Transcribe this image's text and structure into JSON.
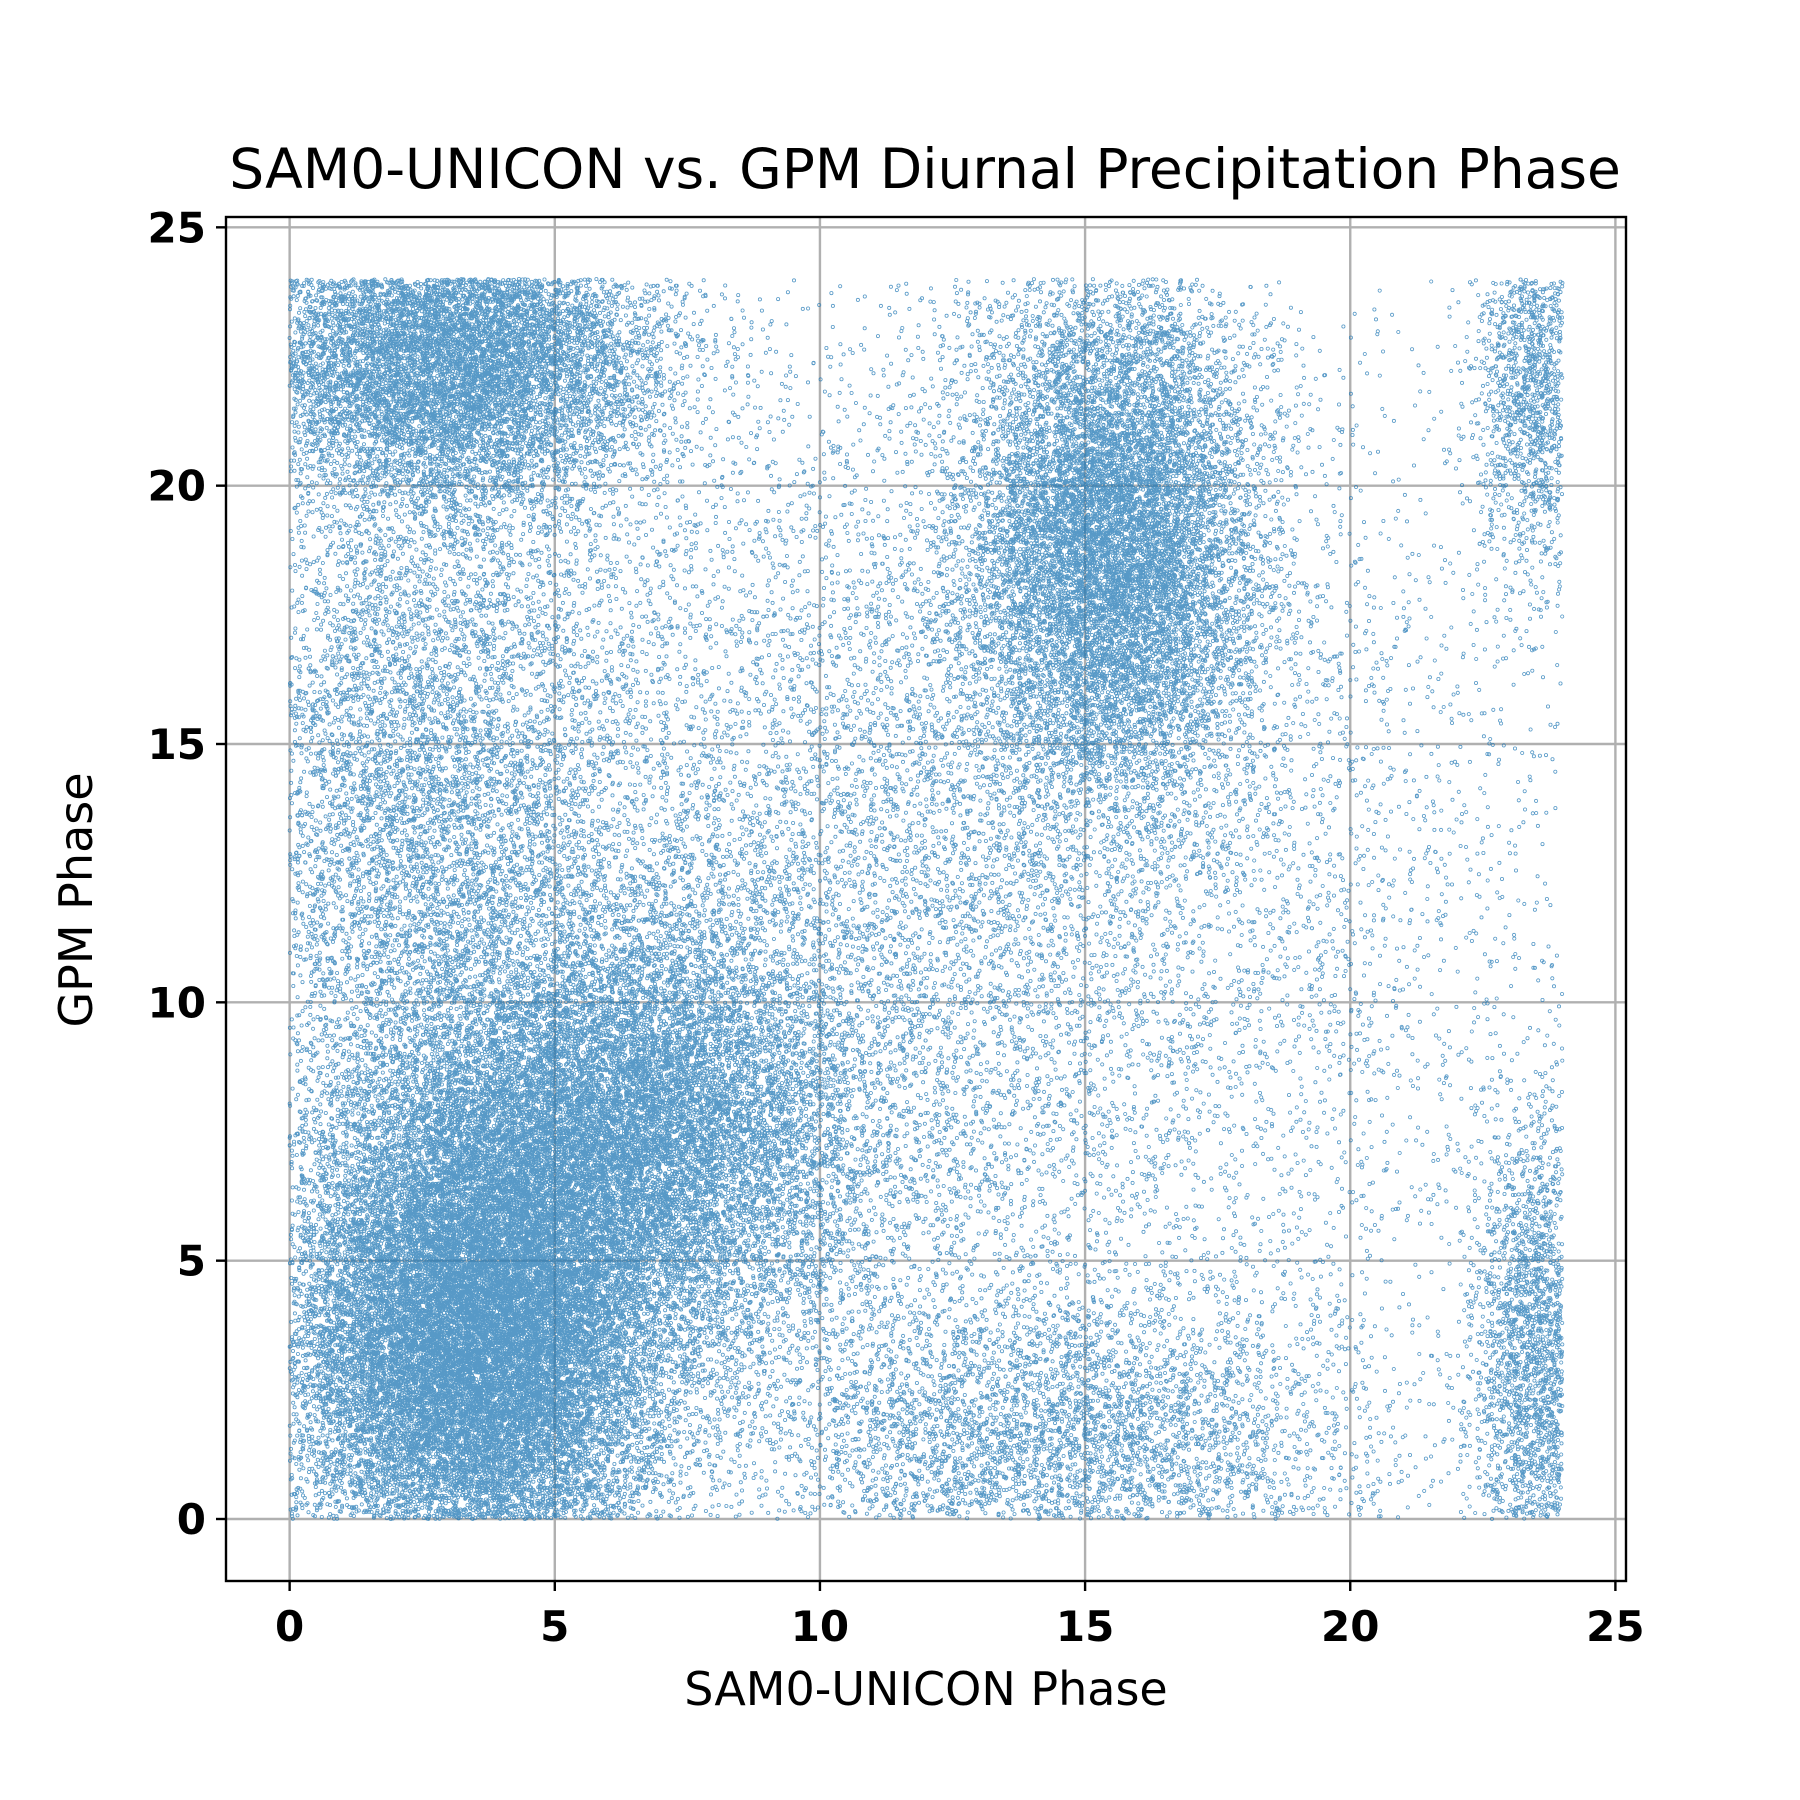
{
  "chart_data": {
    "type": "scatter",
    "title": "SAM0-UNICON vs. GPM Diurnal Precipitation Phase",
    "xlabel": "SAM0-UNICON Phase",
    "ylabel": "GPM Phase",
    "xlim": [
      -1.2,
      25.2
    ],
    "ylim": [
      -1.2,
      25.2
    ],
    "xticks": [
      0,
      5,
      10,
      15,
      20,
      25
    ],
    "yticks": [
      0,
      5,
      10,
      15,
      20,
      25
    ],
    "grid": true,
    "marker_color": "#1f77b4",
    "data_range": {
      "x": [
        0,
        24
      ],
      "y": [
        0,
        24
      ]
    },
    "clusters": [
      {
        "name": "",
        "center": [
          3.5,
          3.5
        ],
        "spread": [
          1.8,
          2.6
        ],
        "weight": 0.28
      },
      {
        "name": "",
        "center": [
          6.5,
          7.5
        ],
        "spread": [
          2.2,
          2.2
        ],
        "weight": 0.14
      },
      {
        "name": "",
        "center": [
          3.0,
          22.5
        ],
        "spread": [
          2.0,
          1.5
        ],
        "weight": 0.12
      },
      {
        "name": "",
        "center": [
          15.5,
          19.0
        ],
        "spread": [
          1.4,
          2.6
        ],
        "weight": 0.13
      },
      {
        "name": "",
        "center": [
          2.5,
          14.0
        ],
        "spread": [
          2.0,
          3.5
        ],
        "weight": 0.07
      },
      {
        "name": "",
        "center": [
          14.5,
          1.5
        ],
        "spread": [
          3.0,
          1.5
        ],
        "weight": 0.05
      },
      {
        "name": "",
        "center": [
          23.5,
          3.0
        ],
        "spread": [
          0.6,
          2.5
        ],
        "weight": 0.03
      },
      {
        "name": "",
        "center": [
          23.5,
          22.0
        ],
        "spread": [
          0.6,
          2.0
        ],
        "weight": 0.02
      },
      {
        "name": "",
        "center": [
          12.0,
          12.0
        ],
        "spread": [
          6.0,
          6.0
        ],
        "weight": 0.16
      }
    ],
    "point_count": 90000
  }
}
